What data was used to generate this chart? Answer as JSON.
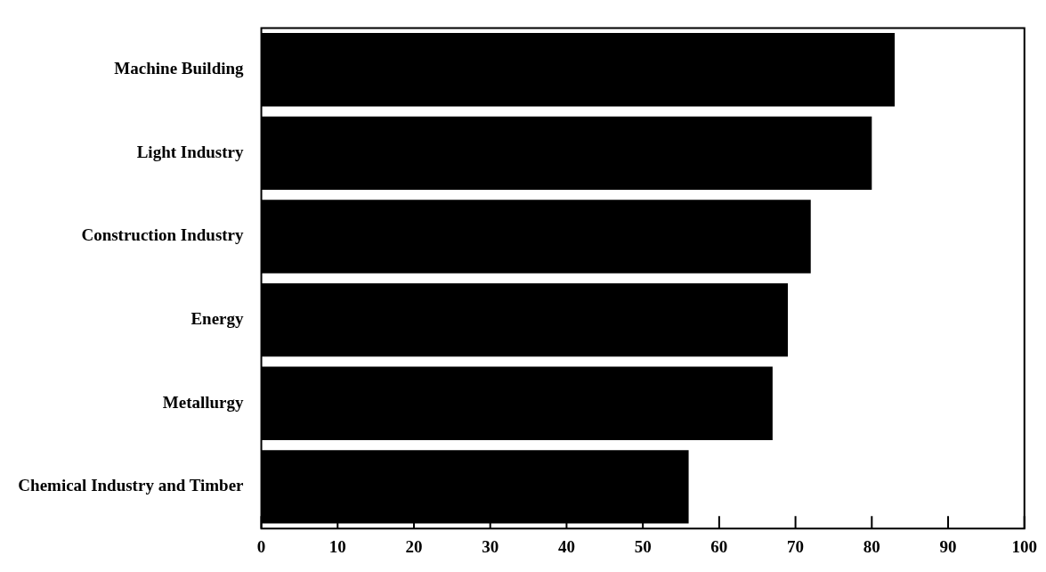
{
  "chart_data": {
    "type": "bar",
    "orientation": "horizontal",
    "categories": [
      "Machine Building",
      "Light Industry",
      "Construction Industry",
      "Energy",
      "Metallurgy",
      "Chemical Industry and Timber"
    ],
    "values": [
      83,
      80,
      72,
      69,
      67,
      56
    ],
    "color": "#000000",
    "xlim": [
      0,
      100
    ],
    "xticks": [
      0,
      10,
      20,
      30,
      40,
      50,
      60,
      70,
      80,
      90,
      100
    ],
    "grid": false,
    "legend": false
  }
}
